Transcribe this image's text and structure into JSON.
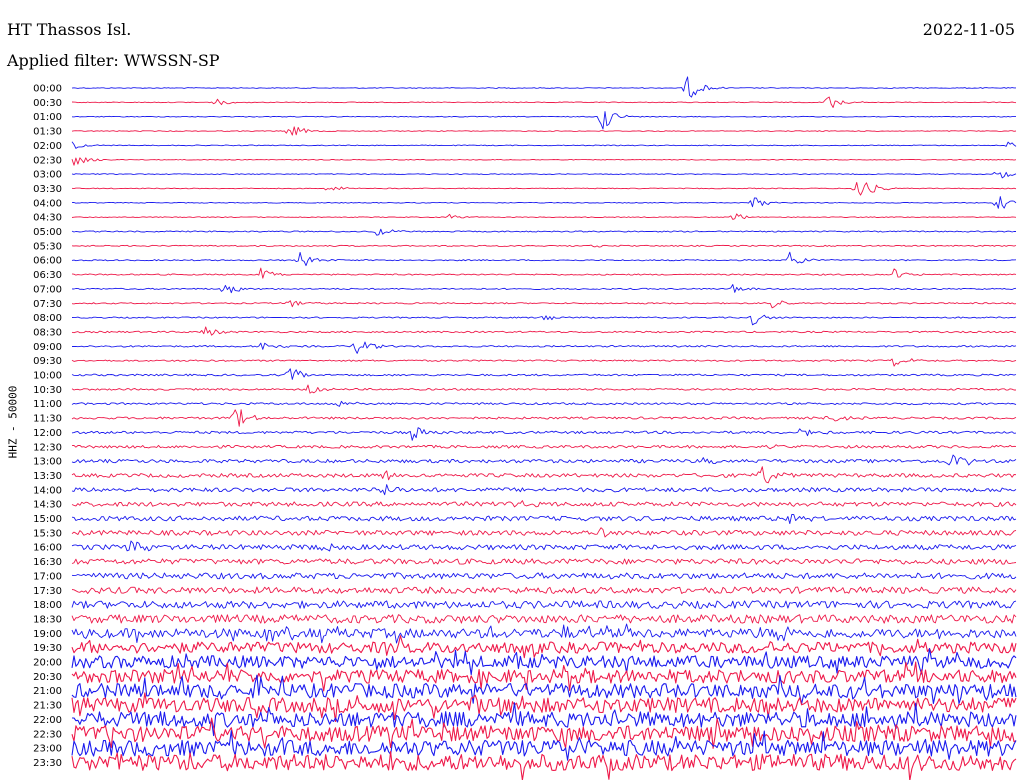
{
  "header": {
    "station": "HT Thassos Isl.",
    "date": "2022-11-05",
    "filter": "Applied filter: WWSSN-SP"
  },
  "chart_data": {
    "type": "line",
    "ylabel": "HHZ - 50000",
    "colors": [
      "#1a1aee",
      "#ee1a4a"
    ],
    "grid": false,
    "rows": [
      {
        "label": "00:00",
        "color": "#1a1aee",
        "noise": 0.08,
        "events": [
          {
            "t": 0.65,
            "a": 1.0
          }
        ]
      },
      {
        "label": "00:30",
        "color": "#ee1a4a",
        "noise": 0.08,
        "events": [
          {
            "t": 0.15,
            "a": 0.3
          },
          {
            "t": 0.8,
            "a": 0.6
          }
        ]
      },
      {
        "label": "01:00",
        "color": "#1a1aee",
        "noise": 0.08,
        "events": [
          {
            "t": 0.56,
            "a": 1.0
          }
        ]
      },
      {
        "label": "01:30",
        "color": "#ee1a4a",
        "noise": 0.08,
        "events": [
          {
            "t": 0.23,
            "a": 0.5
          }
        ]
      },
      {
        "label": "02:00",
        "color": "#1a1aee",
        "noise": 0.08,
        "events": [
          {
            "t": 0.0,
            "a": 0.3
          },
          {
            "t": 0.99,
            "a": 0.3
          }
        ]
      },
      {
        "label": "02:30",
        "color": "#ee1a4a",
        "noise": 0.08,
        "events": [
          {
            "t": 0.0,
            "a": 0.5
          }
        ]
      },
      {
        "label": "03:00",
        "color": "#1a1aee",
        "noise": 0.08,
        "events": [
          {
            "t": 0.98,
            "a": 0.4
          }
        ]
      },
      {
        "label": "03:30",
        "color": "#ee1a4a",
        "noise": 0.08,
        "events": [
          {
            "t": 0.83,
            "a": 1.2
          },
          {
            "t": 0.27,
            "a": 0.3
          }
        ]
      },
      {
        "label": "04:00",
        "color": "#1a1aee",
        "noise": 0.08,
        "events": [
          {
            "t": 0.72,
            "a": 0.5
          },
          {
            "t": 0.98,
            "a": 0.6
          }
        ]
      },
      {
        "label": "04:30",
        "color": "#ee1a4a",
        "noise": 0.08,
        "events": [
          {
            "t": 0.4,
            "a": 0.2
          },
          {
            "t": 0.7,
            "a": 0.3
          }
        ]
      },
      {
        "label": "05:00",
        "color": "#1a1aee",
        "noise": 0.12,
        "events": [
          {
            "t": 0.32,
            "a": 0.4
          }
        ]
      },
      {
        "label": "05:30",
        "color": "#ee1a4a",
        "noise": 0.12,
        "events": [
          {
            "t": 0.55,
            "a": 0.2
          }
        ]
      },
      {
        "label": "06:00",
        "color": "#1a1aee",
        "noise": 0.12,
        "events": [
          {
            "t": 0.24,
            "a": 0.6
          },
          {
            "t": 0.76,
            "a": 0.6
          }
        ]
      },
      {
        "label": "06:30",
        "color": "#ee1a4a",
        "noise": 0.13,
        "events": [
          {
            "t": 0.2,
            "a": 0.4
          },
          {
            "t": 0.87,
            "a": 0.4
          }
        ]
      },
      {
        "label": "07:00",
        "color": "#1a1aee",
        "noise": 0.13,
        "events": [
          {
            "t": 0.16,
            "a": 0.5
          },
          {
            "t": 0.7,
            "a": 0.3
          }
        ]
      },
      {
        "label": "07:30",
        "color": "#ee1a4a",
        "noise": 0.13,
        "events": [
          {
            "t": 0.23,
            "a": 0.3
          },
          {
            "t": 0.74,
            "a": 0.4
          }
        ]
      },
      {
        "label": "08:00",
        "color": "#1a1aee",
        "noise": 0.13,
        "events": [
          {
            "t": 0.5,
            "a": 0.3
          },
          {
            "t": 0.72,
            "a": 0.5
          }
        ]
      },
      {
        "label": "08:30",
        "color": "#ee1a4a",
        "noise": 0.16,
        "events": [
          {
            "t": 0.14,
            "a": 0.4
          }
        ]
      },
      {
        "label": "09:00",
        "color": "#1a1aee",
        "noise": 0.16,
        "events": [
          {
            "t": 0.3,
            "a": 0.7
          },
          {
            "t": 0.2,
            "a": 0.4
          }
        ]
      },
      {
        "label": "09:30",
        "color": "#ee1a4a",
        "noise": 0.16,
        "events": [
          {
            "t": 0.87,
            "a": 0.4
          }
        ]
      },
      {
        "label": "10:00",
        "color": "#1a1aee",
        "noise": 0.18,
        "events": [
          {
            "t": 0.23,
            "a": 0.6
          }
        ]
      },
      {
        "label": "10:30",
        "color": "#ee1a4a",
        "noise": 0.18,
        "events": [
          {
            "t": 0.25,
            "a": 0.4
          }
        ]
      },
      {
        "label": "11:00",
        "color": "#1a1aee",
        "noise": 0.2,
        "events": [
          {
            "t": 0.28,
            "a": 0.3
          }
        ]
      },
      {
        "label": "11:30",
        "color": "#ee1a4a",
        "noise": 0.22,
        "events": [
          {
            "t": 0.17,
            "a": 1.0
          },
          {
            "t": 0.8,
            "a": 0.4
          }
        ]
      },
      {
        "label": "12:00",
        "color": "#1a1aee",
        "noise": 0.25,
        "events": [
          {
            "t": 0.36,
            "a": 0.6
          },
          {
            "t": 0.77,
            "a": 0.5
          }
        ]
      },
      {
        "label": "12:30",
        "color": "#ee1a4a",
        "noise": 0.28,
        "events": [
          {
            "t": 0.74,
            "a": 0.3
          }
        ]
      },
      {
        "label": "13:00",
        "color": "#1a1aee",
        "noise": 0.35,
        "events": [
          {
            "t": 0.67,
            "a": 0.5
          },
          {
            "t": 0.93,
            "a": 0.8
          }
        ]
      },
      {
        "label": "13:30",
        "color": "#ee1a4a",
        "noise": 0.38,
        "events": [
          {
            "t": 0.73,
            "a": 0.8
          },
          {
            "t": 0.33,
            "a": 0.5
          }
        ]
      },
      {
        "label": "14:00",
        "color": "#1a1aee",
        "noise": 0.42,
        "events": [
          {
            "t": 0.33,
            "a": 0.5
          }
        ]
      },
      {
        "label": "14:30",
        "color": "#ee1a4a",
        "noise": 0.45,
        "events": [
          {
            "t": 0.46,
            "a": 0.5
          }
        ]
      },
      {
        "label": "15:00",
        "color": "#1a1aee",
        "noise": 0.48,
        "events": [
          {
            "t": 0.76,
            "a": 0.4
          }
        ]
      },
      {
        "label": "15:30",
        "color": "#ee1a4a",
        "noise": 0.5,
        "events": [
          {
            "t": 0.56,
            "a": 0.4
          }
        ]
      },
      {
        "label": "16:00",
        "color": "#1a1aee",
        "noise": 0.52,
        "events": [
          {
            "t": 0.06,
            "a": 0.5
          },
          {
            "t": 0.26,
            "a": 0.4
          }
        ]
      },
      {
        "label": "16:30",
        "color": "#ee1a4a",
        "noise": 0.55,
        "events": []
      },
      {
        "label": "17:00",
        "color": "#1a1aee",
        "noise": 0.6,
        "events": []
      },
      {
        "label": "17:30",
        "color": "#ee1a4a",
        "noise": 0.65,
        "events": []
      },
      {
        "label": "18:00",
        "color": "#1a1aee",
        "noise": 0.75,
        "events": []
      },
      {
        "label": "18:30",
        "color": "#ee1a4a",
        "noise": 0.85,
        "events": []
      },
      {
        "label": "19:00",
        "color": "#1a1aee",
        "noise": 0.95,
        "events": []
      },
      {
        "label": "19:30",
        "color": "#ee1a4a",
        "noise": 1.1,
        "events": []
      },
      {
        "label": "20:00",
        "color": "#1a1aee",
        "noise": 1.25,
        "events": []
      },
      {
        "label": "20:30",
        "color": "#ee1a4a",
        "noise": 1.35,
        "events": []
      },
      {
        "label": "21:00",
        "color": "#1a1aee",
        "noise": 1.45,
        "events": []
      },
      {
        "label": "21:30",
        "color": "#ee1a4a",
        "noise": 1.5,
        "events": []
      },
      {
        "label": "22:00",
        "color": "#1a1aee",
        "noise": 1.55,
        "events": []
      },
      {
        "label": "22:30",
        "color": "#ee1a4a",
        "noise": 1.6,
        "events": []
      },
      {
        "label": "23:00",
        "color": "#1a1aee",
        "noise": 1.6,
        "events": []
      },
      {
        "label": "23:30",
        "color": "#ee1a4a",
        "noise": 1.65,
        "events": []
      }
    ]
  }
}
